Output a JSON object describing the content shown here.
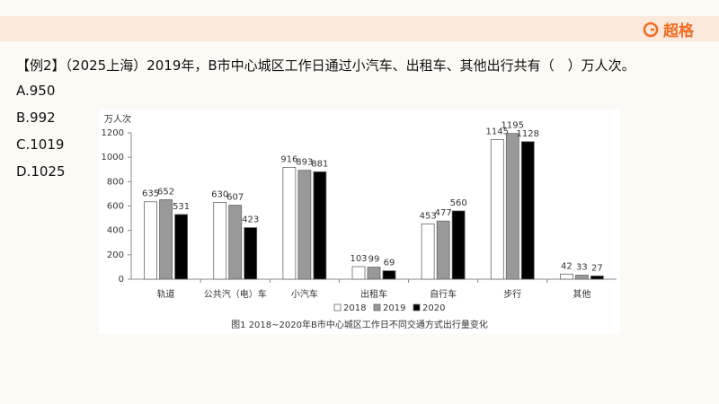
{
  "header": {
    "logo": "超格"
  },
  "question": {
    "text": "【例2】（2025上海）2019年，B市中心城区工作日通过小汽车、出租车、其他出行共有（　）万人次。",
    "options": [
      "A.950",
      "B.992",
      "C.1019",
      "D.1025"
    ]
  },
  "chart_data": {
    "type": "bar",
    "y_label": "万人次",
    "caption": "图1 2018~2020年B市中心城区工作日不同交通方式出行量变化",
    "categories": [
      "轨道",
      "公共汽（电）车",
      "小汽车",
      "出租车",
      "自行车",
      "步行",
      "其他"
    ],
    "series": [
      {
        "name": "2018",
        "color": "#ffffff",
        "values": [
          635,
          630,
          916,
          103,
          453,
          1145,
          42
        ]
      },
      {
        "name": "2019",
        "color": "#999999",
        "values": [
          652,
          607,
          893,
          99,
          477,
          1195,
          33
        ]
      },
      {
        "name": "2020",
        "color": "#000000",
        "values": [
          531,
          423,
          881,
          69,
          560,
          1128,
          27
        ]
      }
    ],
    "ylim": [
      0,
      1200
    ],
    "yticks": [
      0,
      200,
      400,
      600,
      800,
      1000,
      1200
    ],
    "grid": false
  }
}
